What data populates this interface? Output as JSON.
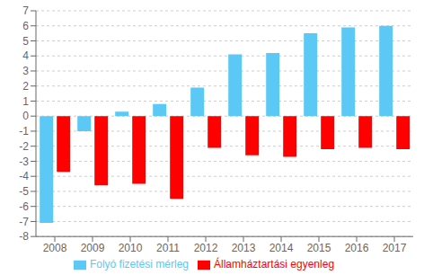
{
  "chart_data": {
    "type": "bar",
    "categories": [
      "2008",
      "2009",
      "2010",
      "2011",
      "2012",
      "2013",
      "2014",
      "2015",
      "2016",
      "2017"
    ],
    "series": [
      {
        "name": "Folyó fizetési mérleg",
        "color": "#5BC8F5",
        "values": [
          -7.1,
          -1.0,
          0.3,
          0.8,
          1.9,
          4.1,
          4.2,
          5.5,
          5.9,
          6.0
        ]
      },
      {
        "name": "Államháztartási egyenleg",
        "color": "#FF0000",
        "values": [
          -3.7,
          -4.6,
          -4.5,
          -5.5,
          -2.1,
          -2.6,
          -2.7,
          -2.2,
          -2.1,
          -2.2
        ]
      }
    ],
    "ylim": [
      -8,
      7
    ],
    "yticks": [
      -8,
      -7,
      -6,
      -5,
      -4,
      -3,
      -2,
      -1,
      0,
      1,
      2,
      3,
      4,
      5,
      6,
      7
    ],
    "grid": true,
    "legend": "bottom"
  }
}
